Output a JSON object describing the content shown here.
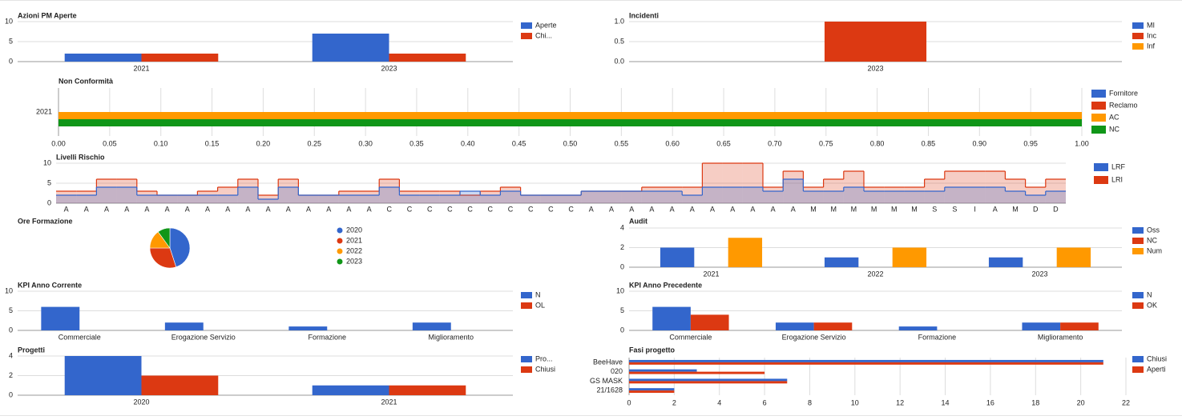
{
  "chart_data": [
    {
      "type": "bar",
      "title": "Azioni PM Aperte",
      "categories": [
        "2021",
        "2023"
      ],
      "series": [
        {
          "name": "Aperte",
          "color": "#3366cc",
          "values": [
            2,
            7
          ]
        },
        {
          "name": "Chi...",
          "color": "#dc3912",
          "values": [
            2,
            2
          ]
        }
      ],
      "ylim": [
        0,
        10
      ],
      "yticks": [
        0,
        5,
        10
      ],
      "grid": true,
      "legend": "right"
    },
    {
      "type": "bar",
      "title": "Incidenti",
      "categories": [
        "2023"
      ],
      "series": [
        {
          "name": "MI",
          "color": "#3366cc",
          "values": [
            0
          ]
        },
        {
          "name": "Inc",
          "color": "#dc3912",
          "values": [
            1
          ]
        },
        {
          "name": "Inf",
          "color": "#ff9900",
          "values": [
            0
          ]
        }
      ],
      "ylim": [
        0,
        1
      ],
      "yticks": [
        {
          "value": 0,
          "label": "0.0"
        },
        0.5,
        {
          "value": 1,
          "label": "1.0"
        }
      ],
      "grid": true,
      "legend": "right"
    },
    {
      "type": "hbar",
      "title": "Non Conformità",
      "categories": [
        "2021"
      ],
      "series": [
        {
          "name": "Fornitore",
          "color": "#3366cc",
          "values": [
            0
          ]
        },
        {
          "name": "Reclamo",
          "color": "#dc3912",
          "values": [
            0
          ]
        },
        {
          "name": "AC",
          "color": "#ff9900",
          "values": [
            1
          ]
        },
        {
          "name": "NC",
          "color": "#109618",
          "values": [
            1
          ]
        }
      ],
      "xlim": [
        0,
        1
      ],
      "xticks": [
        {
          "value": 0,
          "label": "0.00"
        },
        {
          "value": 0.05,
          "label": "0.05"
        },
        {
          "value": 0.1,
          "label": "0.10"
        },
        {
          "value": 0.15,
          "label": "0.15"
        },
        {
          "value": 0.2,
          "label": "0.20"
        },
        {
          "value": 0.25,
          "label": "0.25"
        },
        {
          "value": 0.3,
          "label": "0.30"
        },
        {
          "value": 0.35,
          "label": "0.35"
        },
        {
          "value": 0.4,
          "label": "0.40"
        },
        {
          "value": 0.45,
          "label": "0.45"
        },
        {
          "value": 0.5,
          "label": "0.50"
        },
        {
          "value": 0.55,
          "label": "0.55"
        },
        {
          "value": 0.6,
          "label": "0.60"
        },
        {
          "value": 0.65,
          "label": "0.65"
        },
        {
          "value": 0.7,
          "label": "0.70"
        },
        {
          "value": 0.75,
          "label": "0.75"
        },
        {
          "value": 0.8,
          "label": "0.80"
        },
        {
          "value": 0.85,
          "label": "0.85"
        },
        {
          "value": 0.9,
          "label": "0.90"
        },
        {
          "value": 0.95,
          "label": "0.95"
        },
        {
          "value": 1,
          "label": "1.00"
        }
      ],
      "grid": true,
      "legend": "right"
    },
    {
      "type": "step",
      "title": "Livelli Rischio",
      "categories": [
        "A",
        "A",
        "A",
        "A",
        "A",
        "A",
        "A",
        "A",
        "A",
        "A",
        "A",
        "A",
        "A",
        "A",
        "A",
        "A",
        "C",
        "C",
        "C",
        "C",
        "C",
        "C",
        "C",
        "C",
        "C",
        "C",
        "A",
        "A",
        "A",
        "A",
        "A",
        "A",
        "A",
        "A",
        "A",
        "A",
        "A",
        "M",
        "M",
        "M",
        "M",
        "M",
        "M",
        "S",
        "S",
        "I",
        "A",
        "M",
        "D",
        "D"
      ],
      "series": [
        {
          "name": "LRF",
          "color": "#3366cc",
          "values": [
            2,
            2,
            4,
            4,
            2,
            2,
            2,
            2,
            2,
            4,
            1,
            4,
            2,
            2,
            2,
            2,
            4,
            2,
            2,
            2,
            3,
            2,
            3,
            2,
            2,
            2,
            3,
            3,
            3,
            3,
            3,
            2,
            4,
            4,
            4,
            3,
            6,
            3,
            3,
            4,
            3,
            3,
            3,
            3,
            4,
            4,
            4,
            3,
            2,
            3
          ]
        },
        {
          "name": "LRI",
          "color": "#dc3912",
          "values": [
            3,
            3,
            6,
            6,
            3,
            2,
            2,
            3,
            4,
            6,
            2,
            6,
            2,
            2,
            3,
            3,
            6,
            3,
            3,
            3,
            2,
            3,
            4,
            2,
            2,
            2,
            3,
            3,
            3,
            4,
            4,
            4,
            10,
            10,
            10,
            4,
            8,
            4,
            6,
            8,
            4,
            4,
            4,
            6,
            8,
            8,
            8,
            6,
            4,
            6
          ]
        }
      ],
      "ylim": [
        0,
        10
      ],
      "yticks": [
        0,
        5,
        10
      ],
      "grid": true,
      "legend": "right"
    },
    {
      "type": "pie",
      "title": "Ore Formazione",
      "categories": [
        "2020",
        "2021",
        "2022",
        "2023"
      ],
      "values": [
        45,
        30,
        15,
        10
      ],
      "colors": [
        "#3366cc",
        "#dc3912",
        "#ff9900",
        "#109618"
      ],
      "legend": "right"
    },
    {
      "type": "bar",
      "title": "Audit",
      "categories": [
        "2021",
        "2022",
        "2023"
      ],
      "series": [
        {
          "name": "Oss",
          "color": "#3366cc",
          "values": [
            2,
            1,
            1
          ]
        },
        {
          "name": "NC",
          "color": "#dc3912",
          "values": [
            0,
            0,
            0
          ]
        },
        {
          "name": "Num",
          "color": "#ff9900",
          "values": [
            3,
            2,
            2
          ]
        }
      ],
      "ylim": [
        0,
        4
      ],
      "yticks": [
        0,
        2,
        4
      ],
      "grid": true,
      "legend": "right"
    },
    {
      "type": "bar",
      "title": "KPI Anno Corrente",
      "categories": [
        "Commerciale",
        "Erogazione Servizio",
        "Formazione",
        "Miglioramento"
      ],
      "series": [
        {
          "name": "N",
          "color": "#3366cc",
          "values": [
            6,
            2,
            1,
            2
          ]
        },
        {
          "name": "OL",
          "color": "#dc3912",
          "values": [
            0,
            0,
            0,
            0
          ]
        }
      ],
      "ylim": [
        0,
        10
      ],
      "yticks": [
        0,
        5,
        10
      ],
      "grid": true,
      "legend": "right"
    },
    {
      "type": "bar",
      "title": "KPI Anno Precedente",
      "categories": [
        "Commerciale",
        "Erogazione Servizio",
        "Formazione",
        "Miglioramento"
      ],
      "series": [
        {
          "name": "N",
          "color": "#3366cc",
          "values": [
            6,
            2,
            1,
            2
          ]
        },
        {
          "name": "OK",
          "color": "#dc3912",
          "values": [
            4,
            2,
            0,
            2
          ]
        }
      ],
      "ylim": [
        0,
        10
      ],
      "yticks": [
        0,
        5,
        10
      ],
      "grid": true,
      "legend": "right"
    },
    {
      "type": "bar",
      "title": "Progetti",
      "categories": [
        "2020",
        "2021"
      ],
      "series": [
        {
          "name": "Pro...",
          "color": "#3366cc",
          "values": [
            4,
            1
          ]
        },
        {
          "name": "Chiusi",
          "color": "#dc3912",
          "values": [
            2,
            1
          ]
        }
      ],
      "ylim": [
        0,
        4
      ],
      "yticks": [
        0,
        2,
        4
      ],
      "grid": true,
      "legend": "right"
    },
    {
      "type": "hbar",
      "title": "Fasi progetto",
      "categories": [
        "BeeHave",
        "020",
        "GS MASK",
        "21/1628"
      ],
      "series": [
        {
          "name": "Chiusi",
          "color": "#3366cc",
          "values": [
            21,
            3,
            7,
            2
          ]
        },
        {
          "name": "Aperti",
          "color": "#dc3912",
          "values": [
            21,
            6,
            7,
            2
          ]
        }
      ],
      "xlim": [
        0,
        22
      ],
      "xticks": [
        0,
        2,
        4,
        6,
        8,
        10,
        12,
        14,
        16,
        18,
        20,
        22
      ],
      "grid": true,
      "legend": "right"
    }
  ]
}
